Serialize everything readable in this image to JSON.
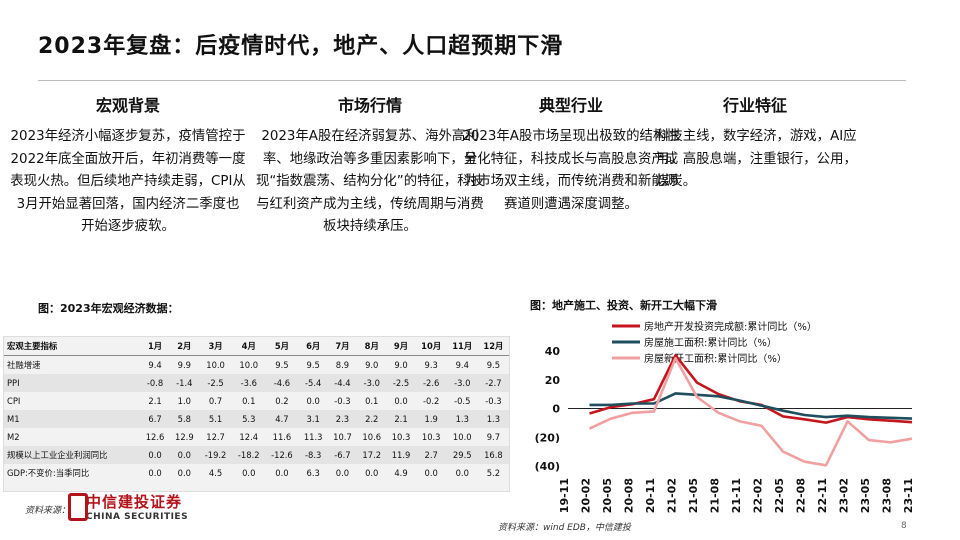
{
  "title": "2023年复盘：后疫情时代，地产、人口超预期下滑",
  "columns": [
    {
      "heading": "宏观背景",
      "text": "2023年经济小幅逐步复苏，疫情管控于2022年底全面放开后，年初消费等一度表现火热。但后续地产持续走弱，CPI从3月开始显著回落，国内经济二季度也开始逐步疲软。"
    },
    {
      "heading": "市场行情",
      "text": "2023年A股在经济弱复苏、海外高利率、地缘政治等多重因素影响下，呈现“指数震荡、结构分化”的特征，科技与红利资产成为主线，传统周期与消费板块持续承压。"
    },
    {
      "heading": "典型行业",
      "text": "2023年A股市场呈现出极致的结构性分化特征，科技成长与高股息资产成为市场双主线，而传统消费和新能源赛道则遭遇深度调整。"
    },
    {
      "heading": "行业特征",
      "text": "科技主线，数字经济，游戏，AI应用。高股息端，注重银行，公用，煤炭。"
    }
  ],
  "table_caption": "图：2023年宏观经济数据：",
  "table": {
    "headers": [
      "宏观主要指标",
      "1月",
      "2月",
      "3月",
      "4月",
      "5月",
      "6月",
      "7月",
      "8月",
      "9月",
      "10月",
      "11月",
      "12月"
    ],
    "rows": [
      [
        "社融增速",
        "9.4",
        "9.9",
        "10.0",
        "10.0",
        "9.5",
        "9.5",
        "8.9",
        "9.0",
        "9.0",
        "9.3",
        "9.4",
        "9.5"
      ],
      [
        "PPI",
        "-0.8",
        "-1.4",
        "-2.5",
        "-3.6",
        "-4.6",
        "-5.4",
        "-4.4",
        "-3.0",
        "-2.5",
        "-2.6",
        "-3.0",
        "-2.7"
      ],
      [
        "CPI",
        "2.1",
        "1.0",
        "0.7",
        "0.1",
        "0.2",
        "0.0",
        "-0.3",
        "0.1",
        "0.0",
        "-0.2",
        "-0.5",
        "-0.3"
      ],
      [
        "M1",
        "6.7",
        "5.8",
        "5.1",
        "5.3",
        "4.7",
        "3.1",
        "2.3",
        "2.2",
        "2.1",
        "1.9",
        "1.3",
        "1.3"
      ],
      [
        "M2",
        "12.6",
        "12.9",
        "12.7",
        "12.4",
        "11.6",
        "11.3",
        "10.7",
        "10.6",
        "10.3",
        "10.3",
        "10.0",
        "9.7"
      ],
      [
        "规模以上工业企业利润同比",
        "0.0",
        "0.0",
        "-19.2",
        "-18.2",
        "-12.6",
        "-8.3",
        "-6.7",
        "17.2",
        "11.9",
        "2.7",
        "29.5",
        "16.8"
      ],
      [
        "GDP:不变价:当季同比",
        "0.0",
        "0.0",
        "4.5",
        "0.0",
        "0.0",
        "6.3",
        "0.0",
        "0.0",
        "4.9",
        "0.0",
        "0.0",
        "5.2"
      ]
    ]
  },
  "source_left": "资料来源：",
  "logo": {
    "cn": "中信建投证券",
    "en": "CHINA SECURITIES"
  },
  "chart_caption": "图：地产施工、投资、新开工大幅下滑",
  "source_right": "资料来源：wind EDB，中信建投",
  "page_number": "8",
  "chart_data": {
    "type": "line",
    "ylim": [
      -40,
      40
    ],
    "yticks": [
      "40",
      "20",
      "0",
      "(20)",
      "(40)"
    ],
    "ytick_values": [
      40,
      20,
      0,
      -20,
      -40
    ],
    "x": [
      "19-11",
      "20-02",
      "20-05",
      "20-08",
      "20-11",
      "21-02",
      "21-05",
      "21-08",
      "21-11",
      "22-02",
      "22-05",
      "22-08",
      "22-11",
      "23-02",
      "23-05",
      "23-08",
      "23-11"
    ],
    "series": [
      {
        "name": "房地产开发投资完成额:累计同比（%）",
        "color": "#c4161c",
        "values": [
          null,
          -3.5,
          1.0,
          3.0,
          6.5,
          37.0,
          18.0,
          10.0,
          5.0,
          2.5,
          -5.5,
          -7.5,
          -9.8,
          -6.0,
          -7.5,
          -8.5,
          -9.5
        ]
      },
      {
        "name": "房屋施工面积:累计同比（%）",
        "color": "#1f4e5f",
        "values": [
          null,
          2.5,
          2.5,
          3.5,
          3.5,
          10.5,
          9.5,
          8.5,
          5.5,
          2.0,
          -1.5,
          -4.5,
          -6.0,
          -5.0,
          -6.0,
          -6.5,
          -7.0
        ]
      },
      {
        "name": "房屋新开工面积:累计同比（%）",
        "color": "#f0a0a0",
        "values": [
          null,
          -14.0,
          -7.0,
          -3.0,
          -2.0,
          35.0,
          8.0,
          -3.0,
          -9.0,
          -12.0,
          -30.0,
          -37.0,
          -39.5,
          -9.0,
          -22.0,
          -23.5,
          -21.0
        ]
      }
    ]
  }
}
